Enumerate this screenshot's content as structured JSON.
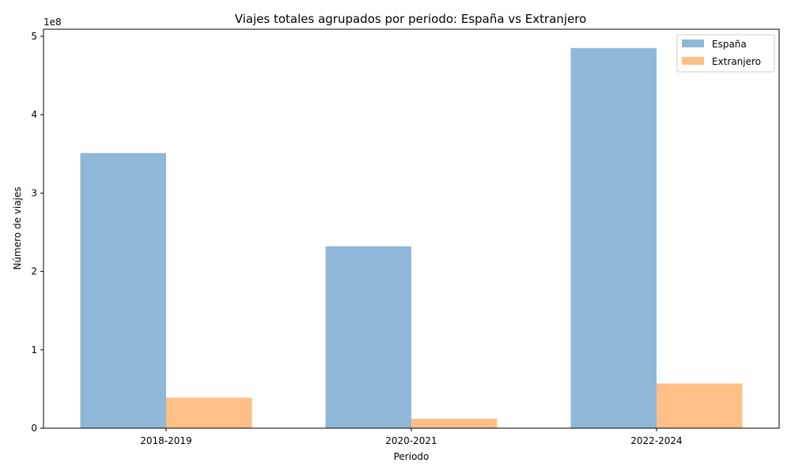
{
  "chart_data": {
    "type": "bar",
    "title": "Viajes totales agrupados por periodo: España vs Extranjero",
    "xlabel": "Periodo",
    "ylabel": "Número de viajes",
    "y_offset_label": "1e8",
    "y_scale": 100000000,
    "categories": [
      "2018-2019",
      "2020-2021",
      "2022-2024"
    ],
    "series": [
      {
        "name": "España",
        "color": "#8fb8d8",
        "values": [
          351000000,
          232000000,
          485000000
        ]
      },
      {
        "name": "Extranjero",
        "color": "#ffbf87",
        "values": [
          39000000,
          12000000,
          57000000
        ]
      }
    ],
    "ylim": [
      0,
      509000000
    ],
    "yticks": [
      0,
      1,
      2,
      3,
      4,
      5
    ],
    "grid": false,
    "legend_position": "top-right"
  }
}
